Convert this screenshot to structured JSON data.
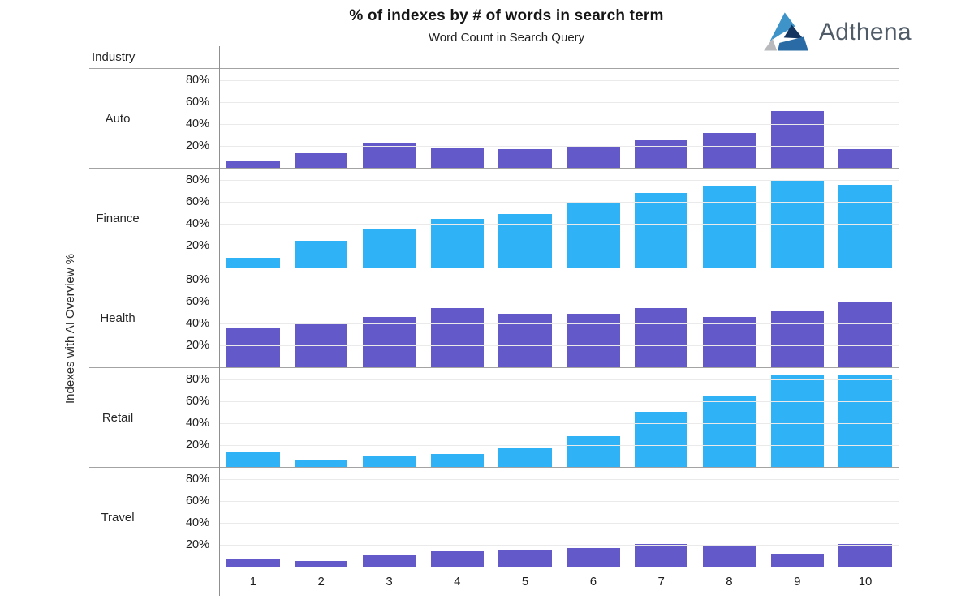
{
  "title": "% of indexes by # of words in search term",
  "logo": {
    "text": "Adthena"
  },
  "chart_data": {
    "type": "bar",
    "title": "% of indexes by # of words in search term",
    "x_axis_title": "Word Count in Search Query",
    "ylabel": "Indexes with AI Overview %",
    "row_header": "Industry",
    "categories": [
      "1",
      "2",
      "3",
      "4",
      "5",
      "6",
      "7",
      "8",
      "9",
      "10"
    ],
    "ytick_labels": [
      "80%",
      "60%",
      "40%",
      "20%"
    ],
    "ytick_values": [
      80,
      60,
      40,
      20
    ],
    "ylim": [
      0,
      90
    ],
    "grid": true,
    "legend_position": "none",
    "colors": {
      "purple": "#6359C8",
      "blue": "#2FB2F6"
    },
    "panels": [
      {
        "industry": "Auto",
        "color": "#6359C8",
        "values": [
          7,
          13,
          22,
          18,
          17,
          20,
          25,
          32,
          52,
          17
        ]
      },
      {
        "industry": "Finance",
        "color": "#2FB2F6",
        "values": [
          9,
          24,
          35,
          44,
          49,
          58,
          68,
          74,
          79,
          75
        ]
      },
      {
        "industry": "Health",
        "color": "#6359C8",
        "values": [
          36,
          40,
          46,
          54,
          49,
          49,
          54,
          46,
          51,
          60
        ]
      },
      {
        "industry": "Retail",
        "color": "#2FB2F6",
        "values": [
          13,
          6,
          10,
          12,
          17,
          28,
          50,
          65,
          84,
          84
        ]
      },
      {
        "industry": "Travel",
        "color": "#6359C8",
        "values": [
          7,
          5,
          10,
          14,
          15,
          17,
          21,
          19,
          12,
          21
        ]
      }
    ]
  }
}
